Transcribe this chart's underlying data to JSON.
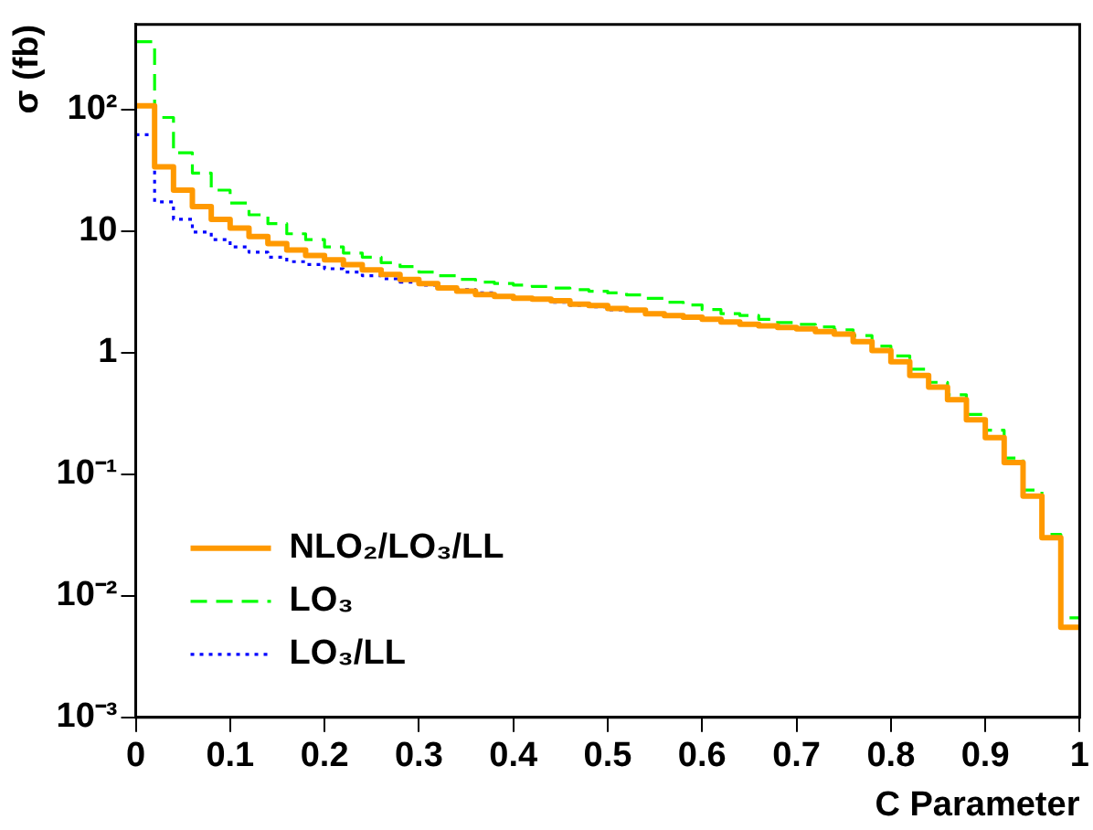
{
  "chart_data": {
    "type": "histogram",
    "xlabel": "C Parameter",
    "ylabel": "σ (fb)",
    "bins": [
      0,
      0.02,
      0.04,
      0.06,
      0.08,
      0.1,
      0.12,
      0.14,
      0.16,
      0.18,
      0.2,
      0.22,
      0.24,
      0.26,
      0.28,
      0.3,
      0.32,
      0.34,
      0.36,
      0.38,
      0.4,
      0.42,
      0.44,
      0.46,
      0.48,
      0.5,
      0.52,
      0.54,
      0.56,
      0.58,
      0.6,
      0.62,
      0.64,
      0.66,
      0.68,
      0.7,
      0.72,
      0.74,
      0.76,
      0.78,
      0.8,
      0.82,
      0.84,
      0.86,
      0.88,
      0.9,
      0.92,
      0.94,
      0.96,
      0.98,
      1
    ],
    "series": [
      {
        "name": "NLO₂/LO₃/LL",
        "color": "#ff9900",
        "line_style": "solid",
        "values": [
          107,
          33.7,
          21.7,
          15.9,
          12.5,
          10.6,
          9.0,
          7.9,
          7.0,
          6.3,
          5.8,
          5.3,
          4.8,
          4.4,
          4.0,
          3.7,
          3.4,
          3.2,
          3.0,
          2.9,
          2.8,
          2.75,
          2.67,
          2.5,
          2.44,
          2.31,
          2.24,
          2.09,
          2.02,
          1.96,
          1.88,
          1.79,
          1.71,
          1.66,
          1.61,
          1.57,
          1.49,
          1.42,
          1.23,
          1.04,
          0.84,
          0.65,
          0.52,
          0.41,
          0.28,
          0.2,
          0.125,
          0.066,
          0.03,
          0.0055
        ]
      },
      {
        "name": "LO₃",
        "color": "#00ff00",
        "line_style": "dashed",
        "values": [
          361,
          86,
          44,
          30,
          21.7,
          17,
          13.6,
          11.5,
          9.5,
          8.5,
          7.4,
          6.6,
          6.1,
          5.5,
          5.1,
          4.6,
          4.3,
          4.0,
          3.8,
          3.7,
          3.6,
          3.5,
          3.4,
          3.3,
          3.2,
          3.1,
          2.98,
          2.8,
          2.6,
          2.47,
          2.26,
          2.09,
          2.02,
          1.88,
          1.77,
          1.71,
          1.63,
          1.54,
          1.38,
          1.13,
          0.94,
          0.73,
          0.57,
          0.45,
          0.31,
          0.23,
          0.136,
          0.074,
          0.032,
          0.0066
        ]
      },
      {
        "name": "LO₃/LL",
        "color": "#0000ff",
        "line_style": "dotted",
        "values": [
          62,
          17.4,
          12.5,
          9.8,
          8.5,
          7.4,
          6.7,
          6.1,
          5.6,
          5.3,
          4.9,
          4.6,
          4.3,
          4.05,
          3.8,
          3.6,
          3.4,
          3.3,
          3.1,
          2.9,
          2.8,
          2.7,
          2.6,
          2.45,
          2.38,
          2.25,
          2.2,
          2.07,
          2.0,
          1.93,
          1.86,
          1.77,
          1.7,
          1.64,
          1.6,
          1.55,
          1.48,
          1.41,
          1.23,
          1.04,
          0.84,
          0.65,
          0.52,
          0.41,
          0.28,
          0.2,
          0.125,
          0.066,
          0.03,
          0.0055
        ]
      }
    ],
    "xlim": [
      0,
      1
    ],
    "xticks": [
      0,
      0.1,
      0.2,
      0.3,
      0.4,
      0.5,
      0.6,
      0.7,
      0.8,
      0.9,
      1
    ],
    "ylim": [
      0.001,
      500
    ],
    "yticks": [
      {
        "value": 0.001,
        "label": "10⁻³"
      },
      {
        "value": 0.01,
        "label": "10⁻²"
      },
      {
        "value": 0.1,
        "label": "10⁻¹"
      },
      1,
      10,
      {
        "value": 100,
        "label": "10²"
      }
    ],
    "log": "y",
    "grid": false,
    "legend": "bottom left"
  }
}
